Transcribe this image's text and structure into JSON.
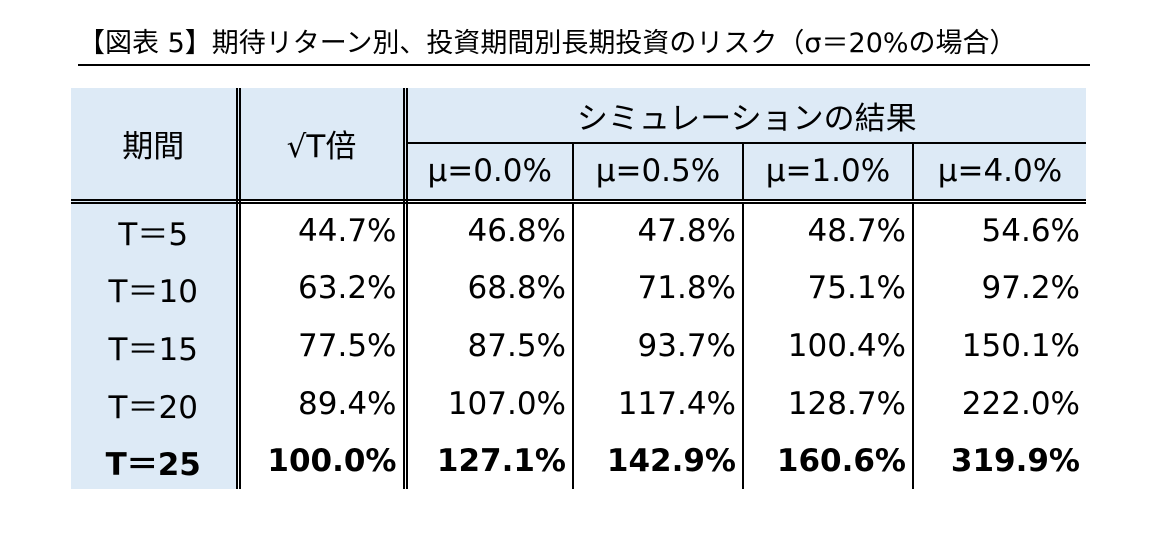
{
  "title": "【図表 5】期待リターン別、投資期間別長期投資のリスク（σ＝20%の場合）",
  "table": {
    "header": {
      "period": "期間",
      "sqrt": "√T倍",
      "simulation": "シミュレーションの結果",
      "mu": [
        "μ=0.0%",
        "μ=0.5%",
        "μ=1.0%",
        "μ=4.0%"
      ]
    },
    "rows": [
      [
        "T＝5",
        "44.7%",
        "46.8%",
        "47.8%",
        "48.7%",
        "54.6%"
      ],
      [
        "T＝10",
        "63.2%",
        "68.8%",
        "71.8%",
        "75.1%",
        "97.2%"
      ],
      [
        "T＝15",
        "77.5%",
        "87.5%",
        "93.7%",
        "100.4%",
        "150.1%"
      ],
      [
        "T＝20",
        "89.4%",
        "107.0%",
        "117.4%",
        "128.7%",
        "222.0%"
      ],
      [
        "T＝25",
        "100.0%",
        "127.1%",
        "142.9%",
        "160.6%",
        "319.9%"
      ]
    ]
  }
}
